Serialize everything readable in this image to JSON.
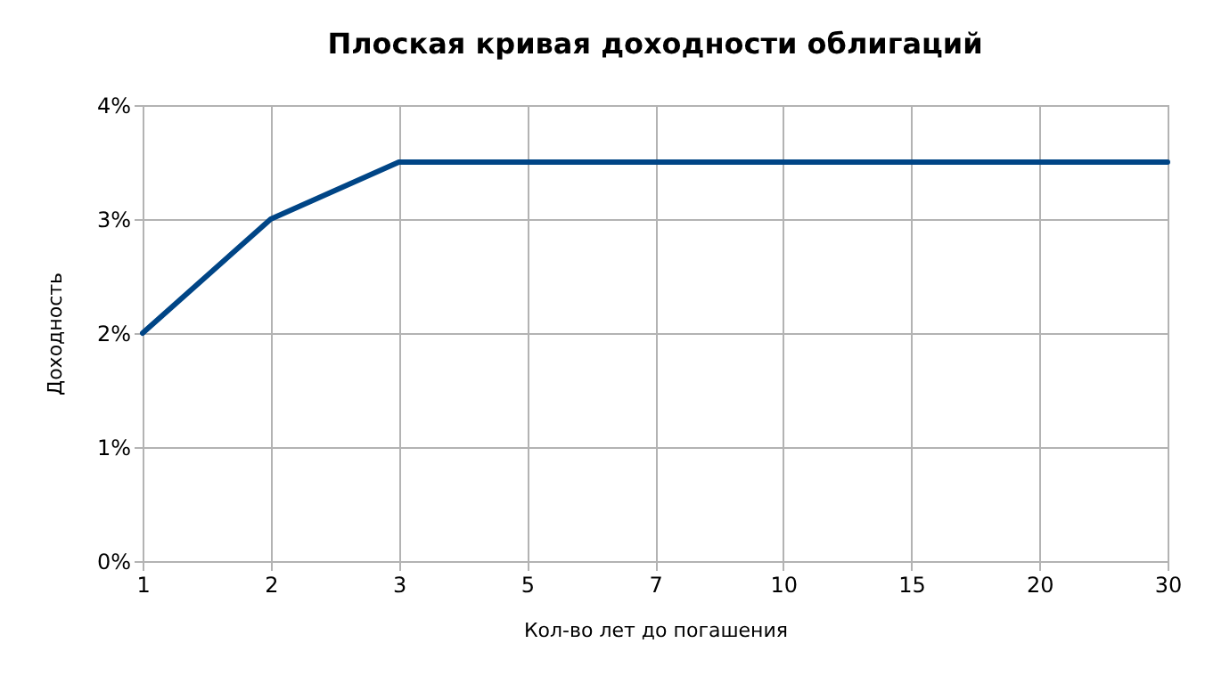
{
  "chart_data": {
    "type": "line",
    "title": "Плоская кривая доходности облигаций",
    "xlabel": "Кол-во лет до погашения",
    "ylabel": "Доходность",
    "categories": [
      "1",
      "2",
      "3",
      "5",
      "7",
      "10",
      "15",
      "20",
      "30"
    ],
    "series": [
      {
        "color": "#004586",
        "values": [
          2,
          3,
          3.5,
          3.5,
          3.5,
          3.5,
          3.5,
          3.5,
          3.5
        ]
      }
    ],
    "ylim": [
      0,
      4
    ],
    "yticks": [
      {
        "value": 0,
        "label": "0%"
      },
      {
        "value": 1,
        "label": "1%"
      },
      {
        "value": 2,
        "label": "2%"
      },
      {
        "value": 3,
        "label": "3%"
      },
      {
        "value": 4,
        "label": "4%"
      }
    ],
    "grid": true,
    "marker": "none",
    "line_style": "solid"
  }
}
